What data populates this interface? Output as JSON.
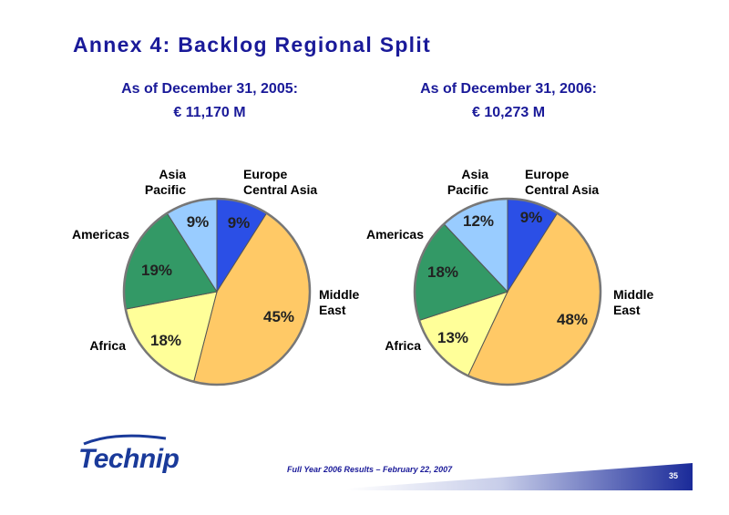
{
  "slide": {
    "title": "Annex 4: Backlog Regional Split",
    "footer": "Full Year 2006 Results – February 22, 2007",
    "page_number": "35",
    "logo": "Technip"
  },
  "colors": {
    "title": "#1a1a99",
    "europe_central_asia": "#2b4fe6",
    "middle_east": "#ffc966",
    "africa": "#ffff99",
    "americas": "#339966",
    "asia_pacific": "#99ccff",
    "slice_border": "#555555"
  },
  "chart_data": [
    {
      "type": "pie",
      "date_label": "As of December 31, 2005:",
      "total_label": "€ 11,170 M",
      "categories": [
        "Europe Central Asia",
        "Middle East",
        "Africa",
        "Americas",
        "Asia Pacific"
      ],
      "values": [
        9,
        45,
        18,
        19,
        9
      ],
      "value_labels": [
        "9%",
        "45%",
        "18%",
        "19%",
        "9%"
      ],
      "category_labels": [
        [
          "Europe",
          "Central Asia"
        ],
        [
          "Middle",
          "East"
        ],
        [
          "Africa"
        ],
        [
          "Americas"
        ],
        [
          "Asia",
          "Pacific"
        ]
      ],
      "colors": [
        "#2b4fe6",
        "#ffc966",
        "#ffff99",
        "#339966",
        "#99ccff"
      ]
    },
    {
      "type": "pie",
      "date_label": "As of December 31, 2006:",
      "total_label": "€ 10,273 M",
      "categories": [
        "Europe Central Asia",
        "Middle East",
        "Africa",
        "Americas",
        "Asia Pacific"
      ],
      "values": [
        9,
        48,
        13,
        18,
        12
      ],
      "value_labels": [
        "9%",
        "48%",
        "13%",
        "18%",
        "12%"
      ],
      "category_labels": [
        [
          "Europe",
          "Central Asia"
        ],
        [
          "Middle",
          "East"
        ],
        [
          "Africa"
        ],
        [
          "Americas"
        ],
        [
          "Asia",
          "Pacific"
        ]
      ],
      "colors": [
        "#2b4fe6",
        "#ffc966",
        "#ffff99",
        "#339966",
        "#99ccff"
      ]
    }
  ]
}
